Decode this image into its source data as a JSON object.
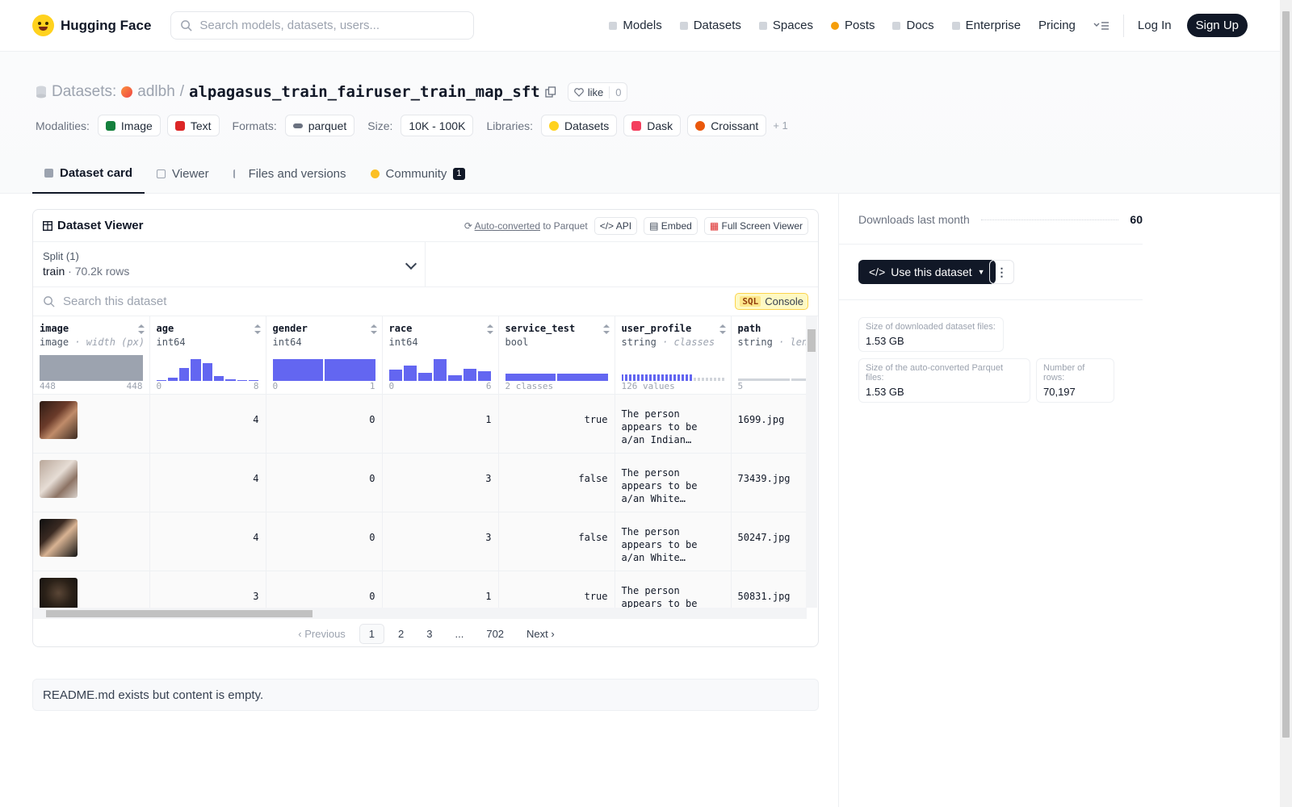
{
  "header": {
    "brand": "Hugging Face",
    "search_placeholder": "Search models, datasets, users...",
    "nav": [
      "Models",
      "Datasets",
      "Spaces",
      "Posts",
      "Docs",
      "Enterprise",
      "Pricing"
    ],
    "login": "Log In",
    "signup": "Sign Up"
  },
  "repo": {
    "kind": "Datasets:",
    "owner": "adlbh",
    "sep": "/",
    "name": "alpagasus_train_fairuser_train_map_sft",
    "like_label": "like",
    "like_count": "0",
    "modalities_label": "Modalities:",
    "modalities": [
      "Image",
      "Text"
    ],
    "formats_label": "Formats:",
    "formats": [
      "parquet"
    ],
    "size_label": "Size:",
    "size": "10K - 100K",
    "libraries_label": "Libraries:",
    "libraries": [
      "Datasets",
      "Dask",
      "Croissant"
    ],
    "more_libraries": "+ 1"
  },
  "tabs": {
    "card": "Dataset card",
    "viewer": "Viewer",
    "files": "Files and versions",
    "community": "Community",
    "community_count": "1"
  },
  "viewer": {
    "title": "Dataset Viewer",
    "auto_converted": "Auto-converted",
    "to_parquet": "to Parquet",
    "api": "API",
    "embed": "Embed",
    "fullscreen": "Full Screen Viewer",
    "split_label": "Split (1)",
    "split_name": "train",
    "split_dot": "·",
    "split_rows": "70.2k rows",
    "search_placeholder": "Search this dataset",
    "sql_tag": "SQL",
    "sql_label": "Console",
    "columns": [
      {
        "name": "image",
        "type": "image",
        "extra": "· width (px)",
        "min": "448",
        "max": "448",
        "hist": [
          1.0
        ]
      },
      {
        "name": "age",
        "type": "int64",
        "extra": "",
        "min": "0",
        "max": "8",
        "hist": [
          0.04,
          0.12,
          0.5,
          0.85,
          0.7,
          0.2,
          0.06,
          0.04,
          0.03
        ]
      },
      {
        "name": "gender",
        "type": "int64",
        "extra": "",
        "min": "0",
        "max": "1",
        "hist": [
          0.85,
          0.85
        ]
      },
      {
        "name": "race",
        "type": "int64",
        "extra": "",
        "min": "0",
        "max": "6",
        "hist": [
          0.45,
          0.6,
          0.3,
          0.85,
          0.22,
          0.48,
          0.38
        ]
      },
      {
        "name": "service_test",
        "type": "bool",
        "extra": "",
        "min": "2 classes",
        "max": "",
        "hist": [
          0.28,
          0.28
        ]
      },
      {
        "name": "user_profile",
        "type": "string",
        "extra": "· classes",
        "min": "126 values",
        "max": "",
        "hist": [
          0.3
        ]
      },
      {
        "name": "path",
        "type": "string",
        "extra": "· leng",
        "min": "5",
        "max": "",
        "hist": [
          0.08,
          0.08,
          0.08,
          0.2
        ]
      }
    ],
    "rows": [
      {
        "age": "4",
        "gender": "0",
        "race": "1",
        "service_test": "true",
        "user_profile": "The person appears to be a/an Indian…",
        "path": "1699.jpg"
      },
      {
        "age": "4",
        "gender": "0",
        "race": "3",
        "service_test": "false",
        "user_profile": "The person appears to be a/an White…",
        "path": "73439.jpg"
      },
      {
        "age": "4",
        "gender": "0",
        "race": "3",
        "service_test": "false",
        "user_profile": "The person appears to be a/an White…",
        "path": "50247.jpg"
      },
      {
        "age": "3",
        "gender": "0",
        "race": "1",
        "service_test": "true",
        "user_profile": "The person appears to be a/an Indian…",
        "path": "50831.jpg"
      }
    ],
    "pager": {
      "prev": "Previous",
      "pages": [
        "1",
        "2",
        "3",
        "...",
        "702"
      ],
      "next": "Next"
    }
  },
  "readme": "README.md exists but content is empty.",
  "sidebar": {
    "downloads_label": "Downloads last month",
    "downloads": "60",
    "use_button": "Use this dataset",
    "size_dl_label": "Size of downloaded dataset files:",
    "size_dl": "1.53 GB",
    "size_pq_label": "Size of the auto-converted Parquet files:",
    "size_pq": "1.53 GB",
    "rows_label": "Number of rows:",
    "rows": "70,197"
  },
  "colors": {
    "accent": "#6366f1",
    "dark": "#111827",
    "posts": "#f59e0b"
  }
}
